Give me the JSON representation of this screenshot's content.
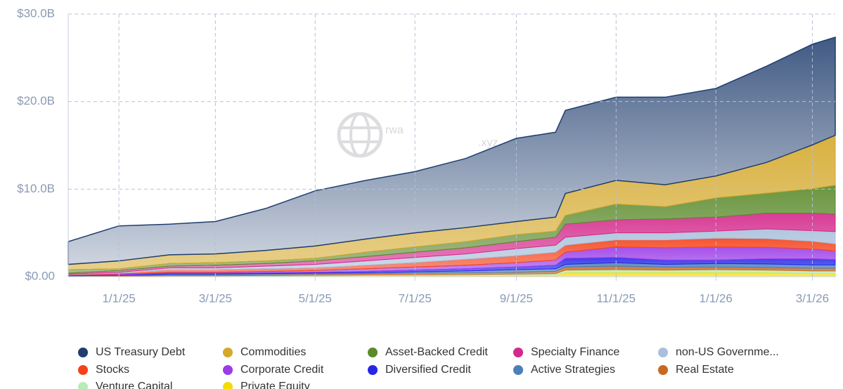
{
  "chart_data": {
    "type": "stacked-area",
    "watermark": [
      "rwa",
      ".xyz"
    ],
    "x": [
      "12/1/24",
      "1/1/25",
      "2/1/25",
      "3/1/25",
      "4/1/25",
      "5/1/25",
      "6/1/25",
      "7/1/25",
      "8/1/25",
      "9/1/25",
      "9/25/25",
      "10/1/25",
      "11/1/25",
      "12/1/25",
      "1/1/26",
      "2/1/26",
      "3/1/26",
      "3/15/26"
    ],
    "xlim": [
      "12/1/24",
      "3/15/26"
    ],
    "xticks": [
      "1/1/25",
      "3/1/25",
      "5/1/25",
      "7/1/25",
      "9/1/25",
      "11/1/25",
      "1/1/26",
      "3/1/26"
    ],
    "ylim": [
      0,
      30
    ],
    "yticks": [
      {
        "value": 0,
        "label": "$0.00"
      },
      {
        "value": 10,
        "label": "$10.0B"
      },
      {
        "value": 20,
        "label": "$20.0B"
      },
      {
        "value": 30,
        "label": "$30.0B"
      }
    ],
    "grid": true,
    "series": [
      {
        "name": "US Treasury Debt",
        "color": "#1f3d6e",
        "values": [
          2.6,
          4.0,
          3.5,
          3.7,
          4.8,
          6.3,
          6.7,
          7.0,
          7.9,
          9.5,
          9.7,
          9.5,
          9.5,
          10.0,
          10.0,
          11.0,
          11.5,
          11.2
        ]
      },
      {
        "name": "Commodities",
        "color": "#d4a82a",
        "values": [
          0.6,
          0.9,
          1.0,
          1.0,
          1.2,
          1.4,
          1.5,
          1.6,
          1.6,
          1.5,
          1.6,
          2.5,
          2.7,
          2.5,
          2.5,
          3.5,
          5.0,
          5.7
        ]
      },
      {
        "name": "Asset-Backed Credit",
        "color": "#5a8a2a",
        "values": [
          0.4,
          0.2,
          0.3,
          0.3,
          0.3,
          0.3,
          0.5,
          0.6,
          0.7,
          0.8,
          0.7,
          1.0,
          1.8,
          1.4,
          2.2,
          2.3,
          2.8,
          3.3
        ]
      },
      {
        "name": "Specialty Finance",
        "color": "#d4288a",
        "values": [
          0.1,
          0.2,
          0.2,
          0.3,
          0.3,
          0.4,
          0.5,
          0.6,
          0.7,
          0.8,
          0.9,
          1.5,
          1.5,
          1.6,
          1.6,
          1.8,
          2.0,
          2.0
        ]
      },
      {
        "name": "non-US Governme...",
        "color": "#a9c0dc",
        "values": [
          0.05,
          0.1,
          0.2,
          0.2,
          0.3,
          0.4,
          0.5,
          0.6,
          0.6,
          0.8,
          0.8,
          0.9,
          0.8,
          0.8,
          0.8,
          1.1,
          1.2,
          1.4
        ]
      },
      {
        "name": "Stocks",
        "color": "#f5421a",
        "values": [
          0.05,
          0.1,
          0.3,
          0.3,
          0.3,
          0.3,
          0.4,
          0.5,
          0.7,
          0.8,
          0.9,
          0.8,
          0.8,
          0.9,
          1.0,
          1.0,
          0.9,
          0.8
        ]
      },
      {
        "name": "Corporate Credit",
        "color": "#9b3ce8",
        "values": [
          0.05,
          0.1,
          0.1,
          0.1,
          0.15,
          0.2,
          0.3,
          0.35,
          0.4,
          0.5,
          0.6,
          0.7,
          1.2,
          1.4,
          1.5,
          1.3,
          1.1,
          1.0
        ]
      },
      {
        "name": "Diversified Credit",
        "color": "#2626e8",
        "values": [
          0.05,
          0.05,
          0.1,
          0.1,
          0.1,
          0.1,
          0.15,
          0.2,
          0.25,
          0.3,
          0.4,
          0.7,
          0.6,
          0.5,
          0.4,
          0.6,
          0.7,
          0.6
        ]
      },
      {
        "name": "Active Strategies",
        "color": "#4c7fb8",
        "values": [
          0.02,
          0.03,
          0.1,
          0.1,
          0.1,
          0.1,
          0.1,
          0.15,
          0.2,
          0.3,
          0.3,
          0.3,
          0.4,
          0.3,
          0.4,
          0.4,
          0.4,
          0.4
        ]
      },
      {
        "name": "Real Estate",
        "color": "#c8691f",
        "values": [
          0.04,
          0.06,
          0.1,
          0.1,
          0.12,
          0.14,
          0.15,
          0.18,
          0.2,
          0.2,
          0.25,
          0.35,
          0.4,
          0.35,
          0.3,
          0.3,
          0.3,
          0.3
        ]
      },
      {
        "name": "Venture Capital",
        "color": "#b8ecb8",
        "values": [
          0.02,
          0.03,
          0.05,
          0.05,
          0.05,
          0.06,
          0.08,
          0.1,
          0.1,
          0.12,
          0.15,
          0.25,
          0.3,
          0.25,
          0.3,
          0.25,
          0.25,
          0.25
        ]
      },
      {
        "name": "Private Equity",
        "color": "#f5dc00",
        "values": [
          0.02,
          0.03,
          0.05,
          0.05,
          0.08,
          0.1,
          0.12,
          0.12,
          0.15,
          0.18,
          0.2,
          0.5,
          0.5,
          0.5,
          0.5,
          0.5,
          0.4,
          0.4
        ]
      }
    ]
  }
}
